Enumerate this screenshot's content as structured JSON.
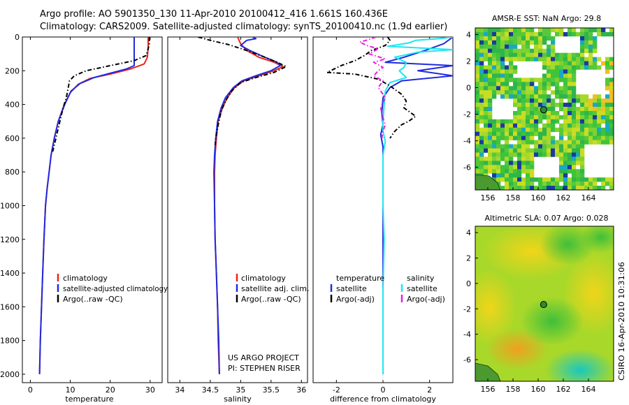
{
  "header": {
    "line1": "Argo profile: AO 5901350_130 11-Apr-2010 20100412_416 1.661S 160.436E",
    "line2": "Climatology: CARS2009. Satellite-adjusted climatology: synTS_20100410.nc (1.9d earlier)"
  },
  "credits": {
    "project": "US ARGO PROJECT",
    "pi": "PI: STEPHEN RISER",
    "side": "CSIRO 16-Apr-2010 10:31:06"
  },
  "colors": {
    "red": "#e8261a",
    "blue": "#1f2be0",
    "black": "#000000",
    "cyan": "#1ee6f0",
    "magenta": "#e61ee6"
  },
  "chart_data": [
    {
      "type": "line",
      "name": "temperature-profile",
      "xlabel": "temperature",
      "ylim": [
        2050,
        0
      ],
      "xlim": [
        -2,
        33
      ],
      "xticks": [
        0,
        10,
        20,
        30
      ],
      "yticks": [
        0,
        200,
        400,
        600,
        800,
        1000,
        1200,
        1400,
        1600,
        1800,
        2000
      ],
      "legend": [
        "climatology",
        "satellite-adjusted climatology",
        "Argo(..raw -QC)"
      ],
      "series": [
        {
          "name": "climatology",
          "color": "red",
          "dash": false,
          "points": [
            [
              29.5,
              0
            ],
            [
              29.5,
              60
            ],
            [
              29.3,
              120
            ],
            [
              28.5,
              160
            ],
            [
              25,
              190
            ],
            [
              20,
              220
            ],
            [
              15,
              245
            ],
            [
              12,
              280
            ],
            [
              10,
              330
            ],
            [
              8.5,
              400
            ],
            [
              7,
              500
            ],
            [
              6,
              600
            ],
            [
              5.2,
              700
            ],
            [
              4.7,
              800
            ],
            [
              4.2,
              900
            ],
            [
              3.8,
              1000
            ],
            [
              3.4,
              1200
            ],
            [
              3.1,
              1400
            ],
            [
              2.8,
              1600
            ],
            [
              2.5,
              1800
            ],
            [
              2.3,
              2000
            ]
          ]
        },
        {
          "name": "satellite-adjusted climatology",
          "color": "blue",
          "dash": false,
          "points": [
            [
              26,
              0
            ],
            [
              26,
              60
            ],
            [
              26,
              170
            ],
            [
              24,
              190
            ],
            [
              20,
              215
            ],
            [
              16,
              240
            ],
            [
              12.5,
              275
            ],
            [
              10.2,
              320
            ],
            [
              8.6,
              400
            ],
            [
              7,
              500
            ],
            [
              6,
              600
            ],
            [
              5.2,
              700
            ],
            [
              4.7,
              800
            ],
            [
              4.2,
              900
            ],
            [
              3.8,
              1000
            ],
            [
              3.4,
              1200
            ],
            [
              3.1,
              1400
            ],
            [
              2.8,
              1600
            ],
            [
              2.5,
              1800
            ],
            [
              2.3,
              2000
            ]
          ]
        },
        {
          "name": "Argo(..raw -QC)",
          "color": "black",
          "dash": true,
          "points": [
            [
              29.8,
              0
            ],
            [
              29.8,
              40
            ],
            [
              29.5,
              70
            ],
            [
              29,
              110
            ],
            [
              26,
              140
            ],
            [
              20,
              170
            ],
            [
              14,
              200
            ],
            [
              11,
              230
            ],
            [
              9.8,
              260
            ],
            [
              9.5,
              300
            ],
            [
              9,
              360
            ],
            [
              8.2,
              420
            ],
            [
              7.4,
              500
            ],
            [
              6.8,
              560
            ],
            [
              6.2,
              620
            ],
            [
              5.6,
              680
            ]
          ]
        }
      ]
    },
    {
      "type": "line",
      "name": "salinity-profile",
      "xlabel": "salinity",
      "ylim": [
        2050,
        0
      ],
      "xlim": [
        33.8,
        36.1
      ],
      "xticks": [
        34,
        34.5,
        35,
        35.5,
        36
      ],
      "legend": [
        "climatology",
        "satellite adj. clim.",
        "Argo(..raw -QC)"
      ],
      "series": [
        {
          "name": "climatology",
          "color": "red",
          "dash": false,
          "points": [
            [
              34.95,
              0
            ],
            [
              35.0,
              40
            ],
            [
              35.1,
              80
            ],
            [
              35.3,
              120
            ],
            [
              35.55,
              150
            ],
            [
              35.7,
              175
            ],
            [
              35.55,
              200
            ],
            [
              35.3,
              230
            ],
            [
              35.05,
              260
            ],
            [
              34.9,
              300
            ],
            [
              34.78,
              360
            ],
            [
              34.7,
              420
            ],
            [
              34.63,
              500
            ],
            [
              34.6,
              600
            ],
            [
              34.58,
              700
            ],
            [
              34.57,
              800
            ],
            [
              34.57,
              1000
            ],
            [
              34.58,
              1200
            ],
            [
              34.6,
              1400
            ],
            [
              34.62,
              1600
            ],
            [
              34.63,
              1800
            ],
            [
              34.65,
              2000
            ]
          ]
        },
        {
          "name": "satellite adj. clim.",
          "color": "blue",
          "dash": false,
          "points": [
            [
              35.2,
              0
            ],
            [
              35.25,
              10
            ],
            [
              35.1,
              20
            ],
            [
              35.0,
              50
            ],
            [
              35.15,
              80
            ],
            [
              35.4,
              120
            ],
            [
              35.6,
              150
            ],
            [
              35.65,
              170
            ],
            [
              35.5,
              200
            ],
            [
              35.25,
              230
            ],
            [
              35.02,
              260
            ],
            [
              34.88,
              300
            ],
            [
              34.75,
              360
            ],
            [
              34.68,
              420
            ],
            [
              34.62,
              500
            ],
            [
              34.59,
              600
            ],
            [
              34.57,
              700
            ],
            [
              34.56,
              800
            ],
            [
              34.57,
              1000
            ],
            [
              34.58,
              1200
            ],
            [
              34.6,
              1400
            ],
            [
              34.62,
              1600
            ],
            [
              34.64,
              1800
            ],
            [
              34.65,
              2000
            ]
          ]
        },
        {
          "name": "Argo(..raw -QC)",
          "color": "black",
          "dash": true,
          "points": [
            [
              34.3,
              0
            ],
            [
              34.5,
              20
            ],
            [
              34.8,
              45
            ],
            [
              35.1,
              80
            ],
            [
              35.4,
              120
            ],
            [
              35.6,
              150
            ],
            [
              35.75,
              175
            ],
            [
              35.55,
              210
            ],
            [
              35.25,
              240
            ],
            [
              35.0,
              270
            ],
            [
              34.85,
              320
            ],
            [
              34.75,
              380
            ],
            [
              34.68,
              440
            ],
            [
              34.63,
              520
            ],
            [
              34.6,
              580
            ],
            [
              34.58,
              640
            ]
          ]
        }
      ]
    },
    {
      "type": "line",
      "name": "difference-profile",
      "xlabel": "difference from climatology",
      "ylim": [
        2050,
        0
      ],
      "xlim": [
        -3,
        3
      ],
      "xticks": [
        -2,
        0,
        2
      ],
      "legend": [
        "temperature",
        "salinity",
        "satellite",
        "satellite",
        "Argo(-adj)",
        "Argo(-adj)"
      ],
      "series": [
        {
          "name": "temperature satellite",
          "color": "blue",
          "dash": false,
          "points": [
            [
              3,
              0
            ],
            [
              2.6,
              40
            ],
            [
              1.8,
              80
            ],
            [
              0.9,
              120
            ],
            [
              0.1,
              150
            ],
            [
              3,
              170
            ],
            [
              1.5,
              200
            ],
            [
              3,
              230
            ],
            [
              0.8,
              260
            ],
            [
              0.3,
              300
            ],
            [
              0,
              360
            ],
            [
              -0.05,
              450
            ],
            [
              0,
              520
            ],
            [
              -0.1,
              580
            ],
            [
              0,
              650
            ],
            [
              0,
              800
            ],
            [
              0,
              1000
            ],
            [
              0,
              1500
            ],
            [
              0,
              2000
            ]
          ]
        },
        {
          "name": "salinity satellite",
          "color": "cyan",
          "dash": false,
          "points": [
            [
              3,
              0
            ],
            [
              2.4,
              10
            ],
            [
              1.4,
              20
            ],
            [
              1.1,
              35
            ],
            [
              0.2,
              55
            ],
            [
              3,
              75
            ],
            [
              1.5,
              90
            ],
            [
              0.5,
              120
            ],
            [
              1.0,
              150
            ],
            [
              0.9,
              180
            ],
            [
              0.7,
              200
            ],
            [
              1.0,
              240
            ],
            [
              0.3,
              270
            ],
            [
              0.1,
              320
            ],
            [
              0.05,
              400
            ],
            [
              0,
              500
            ],
            [
              0,
              560
            ],
            [
              0.1,
              620
            ],
            [
              0,
              700
            ],
            [
              0,
              800
            ],
            [
              0,
              1000
            ],
            [
              0.05,
              1200
            ],
            [
              0,
              1500
            ],
            [
              0,
              1800
            ],
            [
              0,
              2000
            ]
          ]
        },
        {
          "name": "temperature Argo(-adj)",
          "color": "black",
          "dash": true,
          "points": [
            [
              0.2,
              0
            ],
            [
              0.3,
              20
            ],
            [
              0.1,
              50
            ],
            [
              -0.5,
              80
            ],
            [
              -0.8,
              110
            ],
            [
              -1.2,
              140
            ],
            [
              -1.8,
              170
            ],
            [
              -2.4,
              210
            ],
            [
              -1.2,
              220
            ],
            [
              -0.2,
              250
            ],
            [
              0.3,
              290
            ],
            [
              0.8,
              340
            ],
            [
              1.0,
              380
            ],
            [
              0.9,
              420
            ],
            [
              1.4,
              470
            ],
            [
              1.1,
              500
            ],
            [
              0.8,
              520
            ],
            [
              0.5,
              560
            ],
            [
              0.3,
              600
            ]
          ]
        },
        {
          "name": "salinity Argo(-adj)",
          "color": "magenta",
          "dash": true,
          "points": [
            [
              -0.3,
              0
            ],
            [
              -0.6,
              15
            ],
            [
              -1.0,
              30
            ],
            [
              -0.7,
              50
            ],
            [
              -0.2,
              70
            ],
            [
              -0.6,
              100
            ],
            [
              0.1,
              130
            ],
            [
              -0.4,
              150
            ],
            [
              0.0,
              180
            ],
            [
              -0.2,
              200
            ],
            [
              -0.4,
              230
            ],
            [
              0.0,
              260
            ],
            [
              -0.2,
              300
            ],
            [
              0.1,
              360
            ],
            [
              -0.1,
              420
            ],
            [
              0.0,
              480
            ],
            [
              0.1,
              520
            ],
            [
              0.0,
              560
            ],
            [
              -0.05,
              600
            ]
          ]
        }
      ]
    },
    {
      "type": "heatmap",
      "name": "sst-map",
      "title": "AMSR-E SST: NaN Argo: 29.8",
      "xlim": [
        155,
        166
      ],
      "ylim": [
        -7.7,
        4.5
      ],
      "xticks": [
        156,
        158,
        160,
        162,
        164
      ],
      "yticks": [
        4,
        2,
        0,
        -2,
        -4,
        -6
      ],
      "argo_position": [
        160.436,
        -1.661
      ]
    },
    {
      "type": "heatmap",
      "name": "sla-map",
      "title": "Altimetric SLA: 0.07 Argo: 0.028",
      "xlim": [
        155,
        166
      ],
      "ylim": [
        -7.7,
        4.5
      ],
      "xticks": [
        156,
        158,
        160,
        162,
        164
      ],
      "yticks": [
        4,
        2,
        0,
        -2,
        -4,
        -6
      ],
      "argo_position": [
        160.436,
        -1.661
      ]
    }
  ]
}
